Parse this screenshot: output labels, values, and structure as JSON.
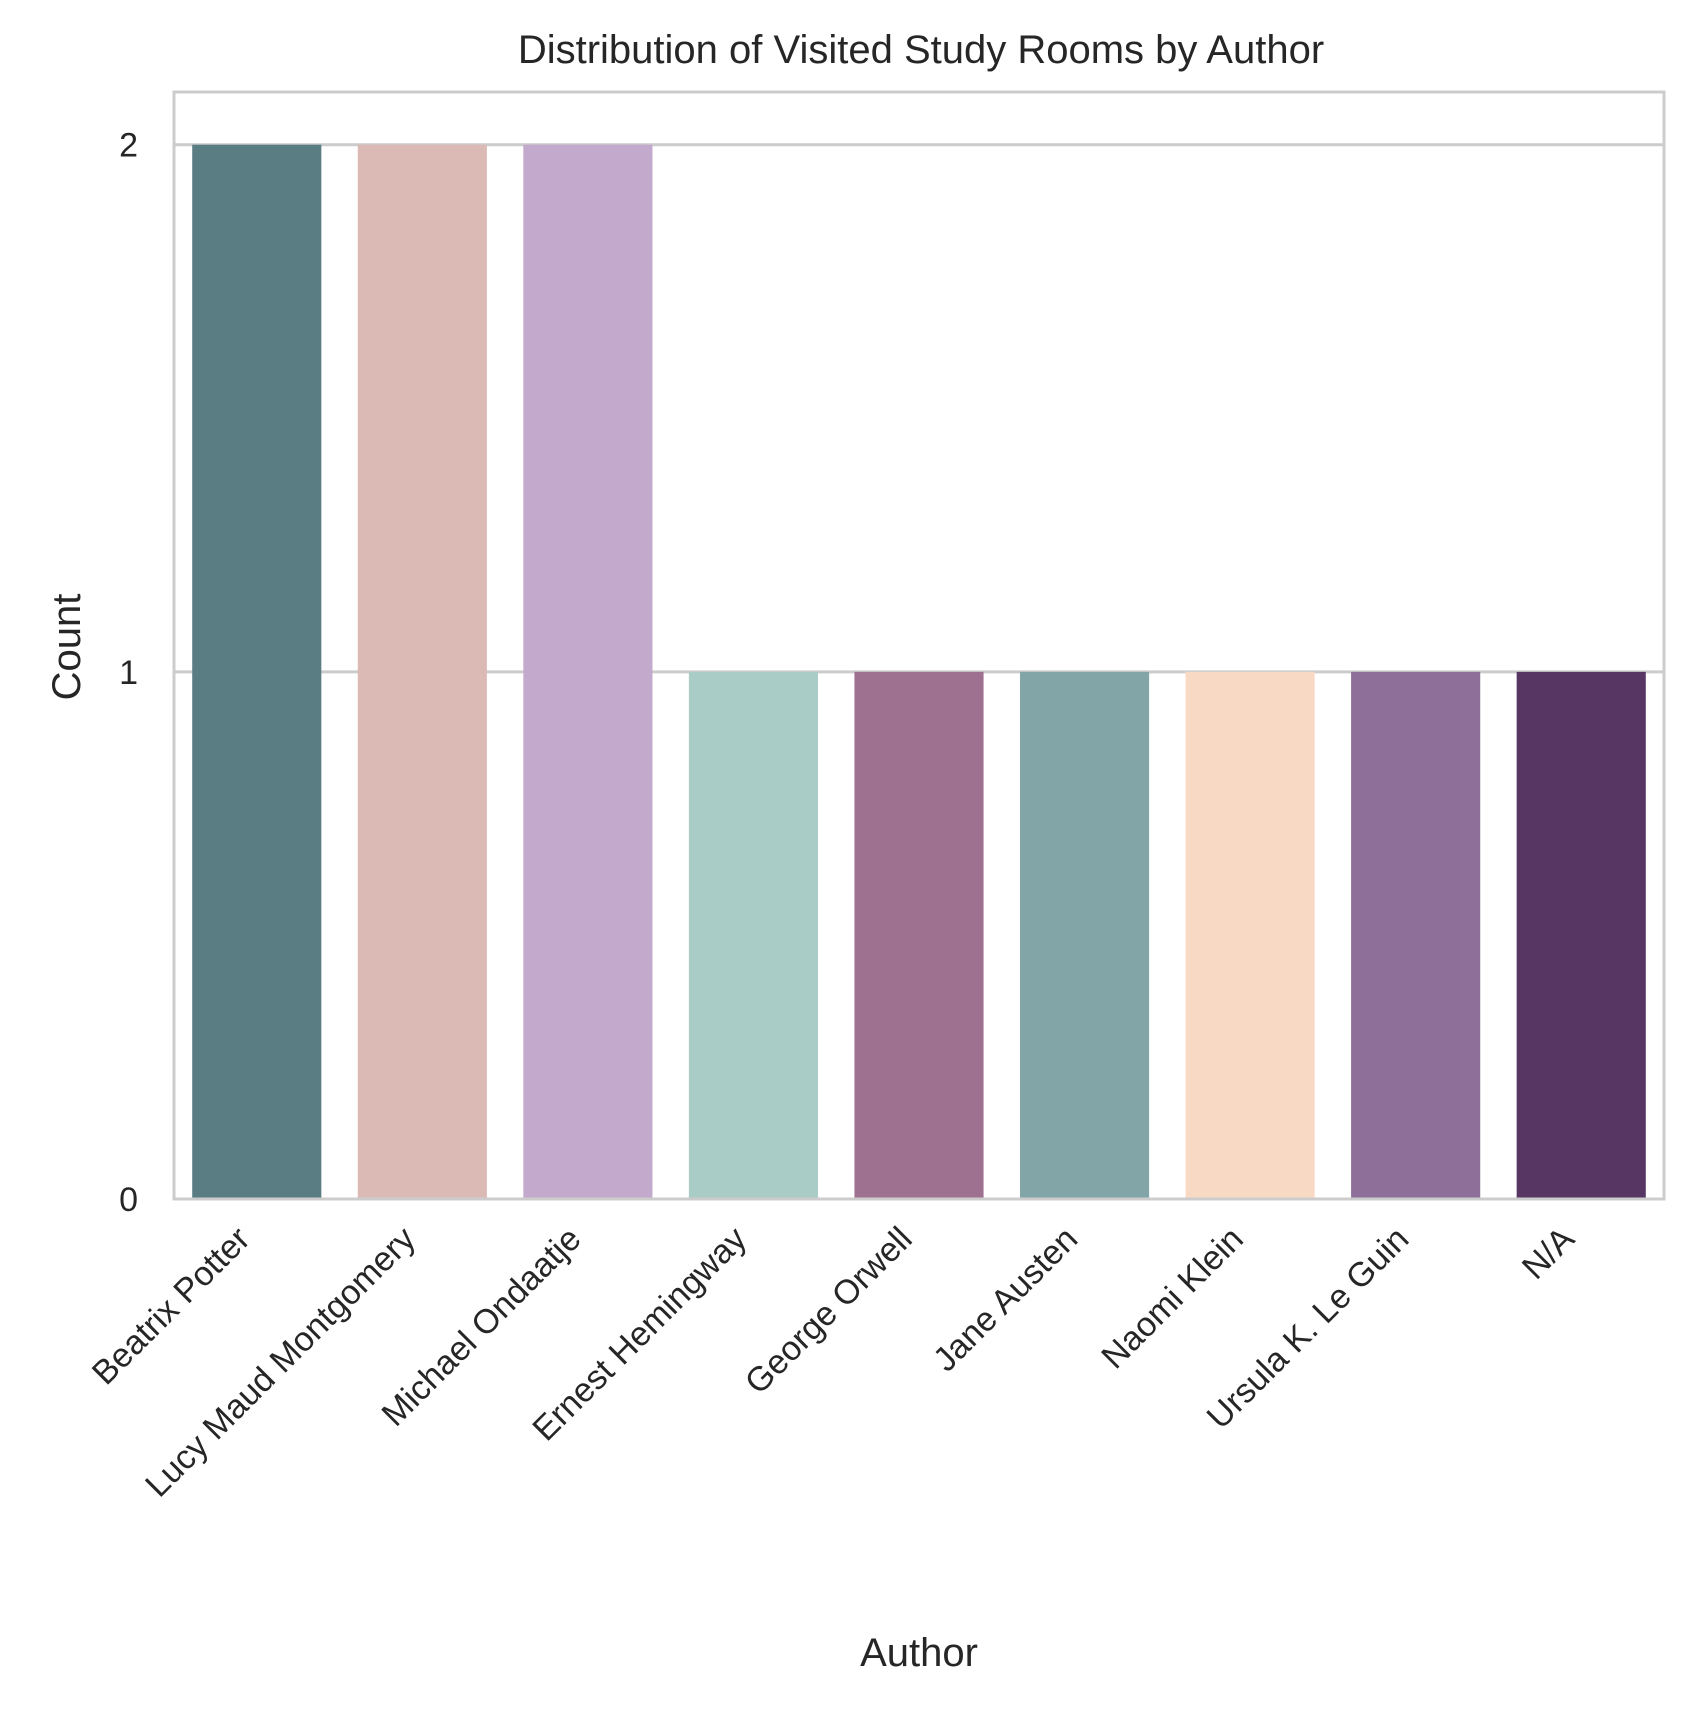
{
  "chart_data": {
    "type": "bar",
    "title": "Distribution of Visited Study Rooms by Author",
    "xlabel": "Author",
    "ylabel": "Count",
    "categories": [
      "Beatrix Potter",
      "Lucy Maud Montgomery",
      "Michael Ondaatje",
      "Ernest Hemingway",
      "George Orwell",
      "Jane Austen",
      "Naomi Klein",
      "Ursula K. Le Guin",
      "N/A"
    ],
    "values": [
      2,
      2,
      2,
      1,
      1,
      1,
      1,
      1,
      1
    ],
    "colors": [
      "#5a7d84",
      "#dbbab6",
      "#c3aacd",
      "#a9cdc6",
      "#9f7190",
      "#82a6a8",
      "#f8d9c3",
      "#8d6f99",
      "#573664"
    ],
    "yticks": [
      "0",
      "1",
      "2"
    ],
    "ylim": [
      0,
      2.1
    ],
    "grid": true,
    "legend": false
  }
}
